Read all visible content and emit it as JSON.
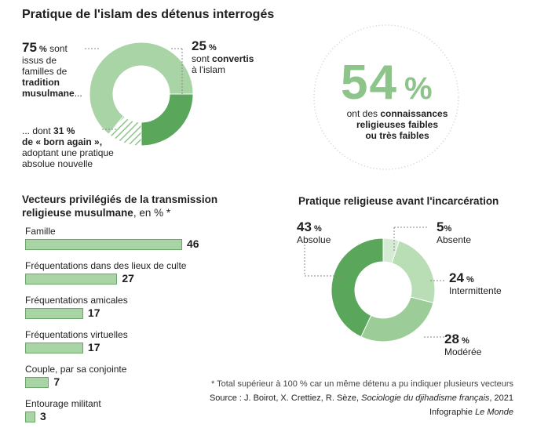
{
  "header": {
    "title": "Pratique de l'islam des détenus interrogés"
  },
  "donut1": {
    "left_value": "75",
    "left_unit": " %",
    "left_text_1": " sont",
    "left_text_2": "issus de",
    "left_text_3": "familles de",
    "left_text_4": "tradition",
    "left_text_5": "musulmane",
    "left_text_6": "...",
    "right_value": "25",
    "right_unit": " %",
    "right_text_1": "sont",
    "right_text_2": "convertis",
    "right_text_3": "à l'islam",
    "bottom_text_1": "... dont ",
    "bottom_value": "31 %",
    "bottom_text_2": "de « born again »,",
    "bottom_text_3": "adoptant une pratique",
    "bottom_text_4": "absolue nouvelle"
  },
  "stat": {
    "value": "54",
    "unit": "%",
    "text_1": "ont des ",
    "text_1b": "connaissances",
    "text_2": "religieuses faibles",
    "text_3": "ou très faibles"
  },
  "bars_block": {
    "title_1": "Vecteurs privilégiés de la transmission",
    "title_2": "religieuse musulmane",
    "title_2_suffix": ", en % *"
  },
  "pie_block": {
    "title": "Pratique religieuse avant l'incarcération"
  },
  "footnote": {
    "note": "* Total supérieur à 100 % car un même détenu a pu indiquer plusieurs vecteurs",
    "source_prefix": "Source : J. Boirot, X. Crettiez, R. Sèze, ",
    "source_book": "Sociologie du djihadisme français",
    "source_suffix": ", 2021",
    "credit_prefix": "Infographie ",
    "credit_name": "Le Monde"
  },
  "colors": {
    "light": "#a9d4a6",
    "mid": "#7fbf7c",
    "dark": "#5aa65a",
    "pale": "#d6ebd3",
    "stroke": "#6aa66a"
  },
  "chart_data": [
    {
      "type": "pie",
      "title": "Pratique de l'islam des détenus interrogés",
      "slices": [
        {
          "name": "tradition musulmane",
          "value": 75
        },
        {
          "name": "convertis",
          "value": 25
        }
      ],
      "sub_slice": {
        "name": "born again",
        "value_of_total": 31
      }
    },
    {
      "type": "bar",
      "title": "Vecteurs privilégiés de la transmission religieuse musulmane, en % *",
      "categories": [
        "Famille",
        "Fréquentations dans des lieux de culte",
        "Fréquentations amicales",
        "Fréquentations virtuelles",
        "Couple, par sa conjointe",
        "Entourage militant"
      ],
      "values": [
        46,
        27,
        17,
        17,
        7,
        3
      ],
      "xlim": [
        0,
        50
      ]
    },
    {
      "type": "pie",
      "title": "Pratique religieuse avant l'incarcération",
      "slices": [
        {
          "name": "Absolue",
          "value": 43
        },
        {
          "name": "Absente",
          "value": 5
        },
        {
          "name": "Intermittente",
          "value": 24
        },
        {
          "name": "Modérée",
          "value": 28
        }
      ]
    }
  ]
}
